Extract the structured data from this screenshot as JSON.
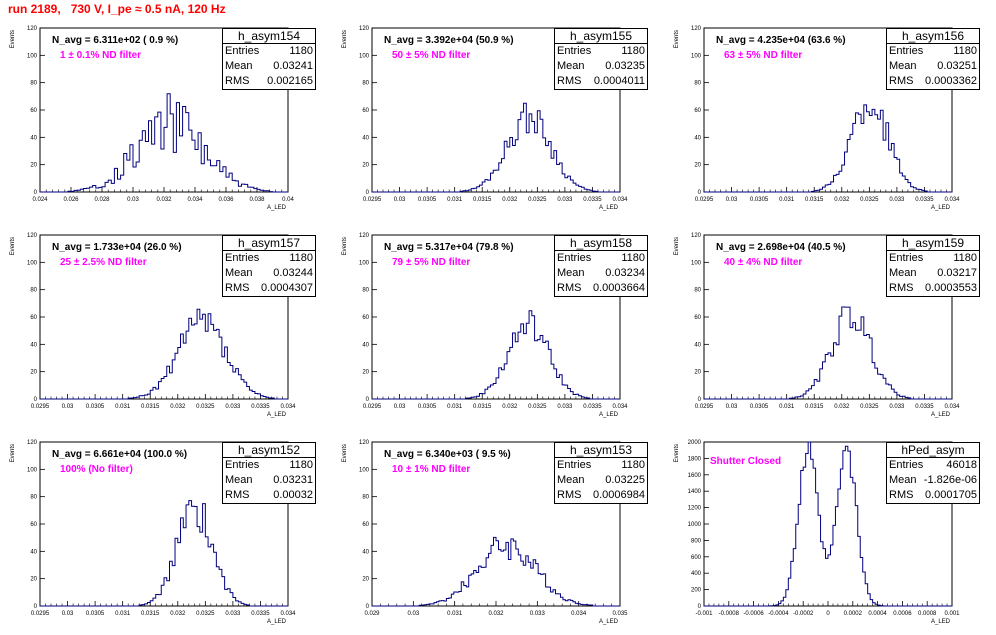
{
  "header": {
    "run_title": "run 2189,   730 V, I_pe ≈ 0.5 nA, 120 Hz"
  },
  "colors": {
    "histogram": "#00007f",
    "title": "#ff0000",
    "annotation": "#ff00ff"
  },
  "chart_data": [
    {
      "type": "bar",
      "name": "h_asym154",
      "navg": "N_avg = 6.311e+02 ( 0.9 %)",
      "filter": "1 ± 0.1% ND filter",
      "stats": {
        "entries": "1180",
        "mean": "0.03241",
        "rms": "0.002165"
      },
      "xlabel": "A_LED",
      "ylabel": "Events",
      "xlim": [
        0.024,
        0.04
      ],
      "ylim": [
        0,
        120
      ],
      "xticks": [
        "0.024",
        "0.026",
        "0.028",
        "0.03",
        "0.032",
        "0.034",
        "0.036",
        "0.038",
        "0.04"
      ],
      "yticks": [
        "0",
        "20",
        "40",
        "60",
        "80",
        "100",
        "120"
      ],
      "mean": 0.03241,
      "rms": 0.002165,
      "peak": 50,
      "bins": 80,
      "noise": 0.45,
      "seed": 154
    },
    {
      "type": "bar",
      "name": "h_asym155",
      "navg": "N_avg = 3.392e+04 (50.9 %)",
      "filter": "50 ± 5% ND filter",
      "stats": {
        "entries": "1180",
        "mean": "0.03235",
        "rms": "0.0004011"
      },
      "xlabel": "A_LED",
      "ylabel": "Events",
      "xlim": [
        0.0295,
        0.034
      ],
      "ylim": [
        0,
        120
      ],
      "xticks": [
        "0.0295",
        "0.03",
        "0.0305",
        "0.031",
        "0.0315",
        "0.032",
        "0.0325",
        "0.033",
        "0.0335",
        "0.034"
      ],
      "yticks": [
        "0",
        "20",
        "40",
        "60",
        "80",
        "100",
        "120"
      ],
      "mean": 0.03235,
      "rms": 0.0004011,
      "peak": 55,
      "bins": 90,
      "noise": 0.22,
      "seed": 155
    },
    {
      "type": "bar",
      "name": "h_asym156",
      "navg": "N_avg = 4.235e+04 (63.6 %)",
      "filter": "63 ± 5% ND filter",
      "stats": {
        "entries": "1180",
        "mean": "0.03251",
        "rms": "0.0003362"
      },
      "xlabel": "A_LED",
      "ylabel": "Events",
      "xlim": [
        0.0295,
        0.034
      ],
      "ylim": [
        0,
        120
      ],
      "xticks": [
        "0.0295",
        "0.03",
        "0.0305",
        "0.031",
        "0.0315",
        "0.032",
        "0.0325",
        "0.033",
        "0.0335",
        "0.034"
      ],
      "yticks": [
        "0",
        "20",
        "40",
        "60",
        "80",
        "100",
        "120"
      ],
      "mean": 0.03251,
      "rms": 0.0003362,
      "peak": 66,
      "bins": 90,
      "noise": 0.22,
      "seed": 156
    },
    {
      "type": "bar",
      "name": "h_asym157",
      "navg": "N_avg = 1.733e+04 (26.0 %)",
      "filter": "25 ± 2.5% ND filter",
      "stats": {
        "entries": "1180",
        "mean": "0.03244",
        "rms": "0.0004307"
      },
      "xlabel": "A_LED",
      "ylabel": "Events",
      "xlim": [
        0.0295,
        0.034
      ],
      "ylim": [
        0,
        120
      ],
      "xticks": [
        "0.0295",
        "0.03",
        "0.0305",
        "0.031",
        "0.0315",
        "0.032",
        "0.0325",
        "0.033",
        "0.0335",
        "0.034"
      ],
      "yticks": [
        "0",
        "20",
        "40",
        "60",
        "80",
        "100",
        "120"
      ],
      "mean": 0.03244,
      "rms": 0.0004307,
      "peak": 55,
      "bins": 90,
      "noise": 0.25,
      "seed": 157
    },
    {
      "type": "bar",
      "name": "h_asym158",
      "navg": "N_avg = 5.317e+04 (79.8 %)",
      "filter": "79 ± 5% ND filter",
      "stats": {
        "entries": "1180",
        "mean": "0.03234",
        "rms": "0.0003664"
      },
      "xlabel": "A_LED",
      "ylabel": "Events",
      "xlim": [
        0.0295,
        0.034
      ],
      "ylim": [
        0,
        120
      ],
      "xticks": [
        "0.0295",
        "0.03",
        "0.0305",
        "0.031",
        "0.0315",
        "0.032",
        "0.0325",
        "0.033",
        "0.0335",
        "0.034"
      ],
      "yticks": [
        "0",
        "20",
        "40",
        "60",
        "80",
        "100",
        "120"
      ],
      "mean": 0.03234,
      "rms": 0.0003664,
      "peak": 55,
      "bins": 90,
      "noise": 0.2,
      "seed": 158
    },
    {
      "type": "bar",
      "name": "h_asym159",
      "navg": "N_avg = 2.698e+04 (40.5 %)",
      "filter": "40 ± 4% ND filter",
      "stats": {
        "entries": "1180",
        "mean": "0.03217",
        "rms": "0.0003553"
      },
      "xlabel": "A_LED",
      "ylabel": "Events",
      "xlim": [
        0.0295,
        0.034
      ],
      "ylim": [
        0,
        120
      ],
      "xticks": [
        "0.0295",
        "0.03",
        "0.0305",
        "0.031",
        "0.0315",
        "0.032",
        "0.0325",
        "0.033",
        "0.0335",
        "0.034"
      ],
      "yticks": [
        "0",
        "20",
        "40",
        "60",
        "80",
        "100",
        "120"
      ],
      "mean": 0.03217,
      "rms": 0.0003553,
      "peak": 62,
      "bins": 90,
      "noise": 0.2,
      "seed": 159
    },
    {
      "type": "bar",
      "name": "h_asym152",
      "navg": "N_avg = 6.661e+04 (100.0 %)",
      "filter": "100% (No filter)",
      "stats": {
        "entries": "1180",
        "mean": "0.03231",
        "rms": "0.00032"
      },
      "xlabel": "A_LED",
      "ylabel": "Events",
      "xlim": [
        0.0295,
        0.034
      ],
      "ylim": [
        0,
        120
      ],
      "xticks": [
        "0.0295",
        "0.03",
        "0.0305",
        "0.031",
        "0.0315",
        "0.032",
        "0.0325",
        "0.033",
        "0.0335",
        "0.034"
      ],
      "yticks": [
        "0",
        "20",
        "40",
        "60",
        "80",
        "100",
        "120"
      ],
      "mean": 0.03231,
      "rms": 0.00032,
      "peak": 72,
      "bins": 90,
      "noise": 0.2,
      "seed": 152
    },
    {
      "type": "bar",
      "name": "h_asym153",
      "navg": "N_avg = 6.340e+03 ( 9.5 %)",
      "filter": "10 ± 1% ND filter",
      "stats": {
        "entries": "1180",
        "mean": "0.03225",
        "rms": "0.0006984"
      },
      "xlabel": "A_LED",
      "ylabel": "Events",
      "xlim": [
        0.029,
        0.035
      ],
      "ylim": [
        0,
        120
      ],
      "xticks": [
        "0.029",
        "0.03",
        "0.031",
        "0.032",
        "0.033",
        "0.034",
        "0.035"
      ],
      "yticks": [
        "0",
        "20",
        "40",
        "60",
        "80",
        "100",
        "120"
      ],
      "mean": 0.03225,
      "rms": 0.0006984,
      "peak": 45,
      "bins": 100,
      "noise": 0.25,
      "seed": 153
    },
    {
      "type": "bar",
      "name": "hPed_asym",
      "navg": "",
      "filter": "Shutter Closed",
      "stats": {
        "entries": "46018",
        "mean": "-1.826e-06",
        "rms": "0.0001705"
      },
      "xlabel": "A_LED",
      "ylabel": "Events",
      "xlim": [
        -0.001,
        0.001
      ],
      "ylim": [
        0,
        2000
      ],
      "xticks": [
        "-0.001",
        "-0.0008",
        "-0.0006",
        "-0.0004",
        "-0.0002",
        "0",
        "0.0002",
        "0.0004",
        "0.0006",
        "0.0008",
        "0.001"
      ],
      "yticks": [
        "0",
        "200",
        "400",
        "600",
        "800",
        "1000",
        "1200",
        "1400",
        "1600",
        "1800",
        "2000"
      ],
      "double_peak": [
        -0.00016,
        0.00015
      ],
      "peak_width": 8e-05,
      "peak": 1950,
      "bins": 100,
      "noise": 0.08,
      "seed": 99
    }
  ]
}
